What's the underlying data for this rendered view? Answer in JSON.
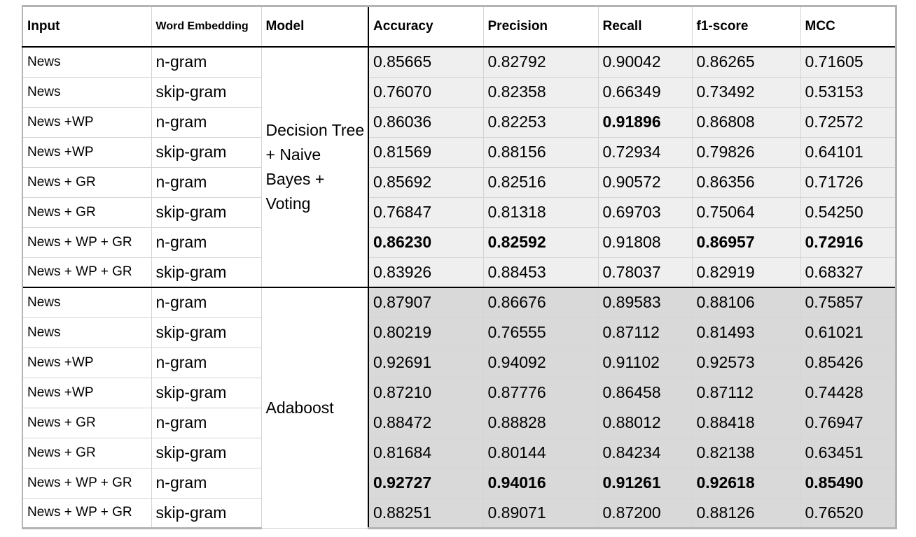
{
  "headers": {
    "input": "Input",
    "embedding": "Word Embedding",
    "model": "Model",
    "accuracy": "Accuracy",
    "precision": "Precision",
    "recall": "Recall",
    "f1": "f1-score",
    "mcc": "MCC"
  },
  "groups": [
    {
      "model": "Decision Tree + Naive Bayes + Voting",
      "rows": [
        {
          "input": "News",
          "embedding": "n-gram",
          "values": [
            "0.85665",
            "0.82792",
            "0.90042",
            "0.86265",
            "0.71605"
          ],
          "bold": [
            false,
            false,
            false,
            false,
            false
          ]
        },
        {
          "input": "News",
          "embedding": "skip-gram",
          "values": [
            "0.76070",
            "0.82358",
            "0.66349",
            "0.73492",
            "0.53153"
          ],
          "bold": [
            false,
            false,
            false,
            false,
            false
          ]
        },
        {
          "input": "News +WP",
          "embedding": "n-gram",
          "values": [
            "0.86036",
            "0.82253",
            "0.91896",
            "0.86808",
            "0.72572"
          ],
          "bold": [
            false,
            false,
            true,
            false,
            false
          ]
        },
        {
          "input": "News +WP",
          "embedding": "skip-gram",
          "values": [
            "0.81569",
            "0.88156",
            "0.72934",
            "0.79826",
            "0.64101"
          ],
          "bold": [
            false,
            false,
            false,
            false,
            false
          ]
        },
        {
          "input": "News + GR",
          "embedding": "n-gram",
          "values": [
            "0.85692",
            "0.82516",
            "0.90572",
            "0.86356",
            "0.71726"
          ],
          "bold": [
            false,
            false,
            false,
            false,
            false
          ]
        },
        {
          "input": "News + GR",
          "embedding": "skip-gram",
          "values": [
            "0.76847",
            "0.81318",
            "0.69703",
            "0.75064",
            "0.54250"
          ],
          "bold": [
            false,
            false,
            false,
            false,
            false
          ]
        },
        {
          "input": "News + WP + GR",
          "embedding": "n-gram",
          "values": [
            "0.86230",
            "0.82592",
            "0.91808",
            "0.86957",
            "0.72916"
          ],
          "bold": [
            true,
            true,
            false,
            true,
            true
          ]
        },
        {
          "input": "News + WP + GR",
          "embedding": "skip-gram",
          "values": [
            "0.83926",
            "0.88453",
            "0.78037",
            "0.82919",
            "0.68327"
          ],
          "bold": [
            false,
            false,
            false,
            false,
            false
          ]
        }
      ]
    },
    {
      "model": "Adaboost",
      "rows": [
        {
          "input": "News",
          "embedding": "n-gram",
          "values": [
            "0.87907",
            "0.86676",
            "0.89583",
            "0.88106",
            "0.75857"
          ],
          "bold": [
            false,
            false,
            false,
            false,
            false
          ]
        },
        {
          "input": "News",
          "embedding": "skip-gram",
          "values": [
            "0.80219",
            "0.76555",
            "0.87112",
            "0.81493",
            "0.61021"
          ],
          "bold": [
            false,
            false,
            false,
            false,
            false
          ]
        },
        {
          "input": "News +WP",
          "embedding": "n-gram",
          "values": [
            "0.92691",
            "0.94092",
            "0.91102",
            "0.92573",
            "0.85426"
          ],
          "bold": [
            false,
            false,
            false,
            false,
            false
          ]
        },
        {
          "input": "News +WP",
          "embedding": "skip-gram",
          "values": [
            "0.87210",
            "0.87776",
            "0.86458",
            "0.87112",
            "0.74428"
          ],
          "bold": [
            false,
            false,
            false,
            false,
            false
          ]
        },
        {
          "input": "News + GR",
          "embedding": "n-gram",
          "values": [
            "0.88472",
            "0.88828",
            "0.88012",
            "0.88418",
            "0.76947"
          ],
          "bold": [
            false,
            false,
            false,
            false,
            false
          ]
        },
        {
          "input": "News + GR",
          "embedding": "skip-gram",
          "values": [
            "0.81684",
            "0.80144",
            "0.84234",
            "0.82138",
            "0.63451"
          ],
          "bold": [
            false,
            false,
            false,
            false,
            false
          ]
        },
        {
          "input": "News + WP + GR",
          "embedding": "n-gram",
          "values": [
            "0.92727",
            "0.94016",
            "0.91261",
            "0.92618",
            "0.85490"
          ],
          "bold": [
            true,
            true,
            true,
            true,
            true
          ]
        },
        {
          "input": "News + WP + GR",
          "embedding": "skip-gram",
          "values": [
            "0.88251",
            "0.89071",
            "0.87200",
            "0.88126",
            "0.76520"
          ],
          "bold": [
            false,
            false,
            false,
            false,
            false
          ]
        }
      ]
    }
  ]
}
